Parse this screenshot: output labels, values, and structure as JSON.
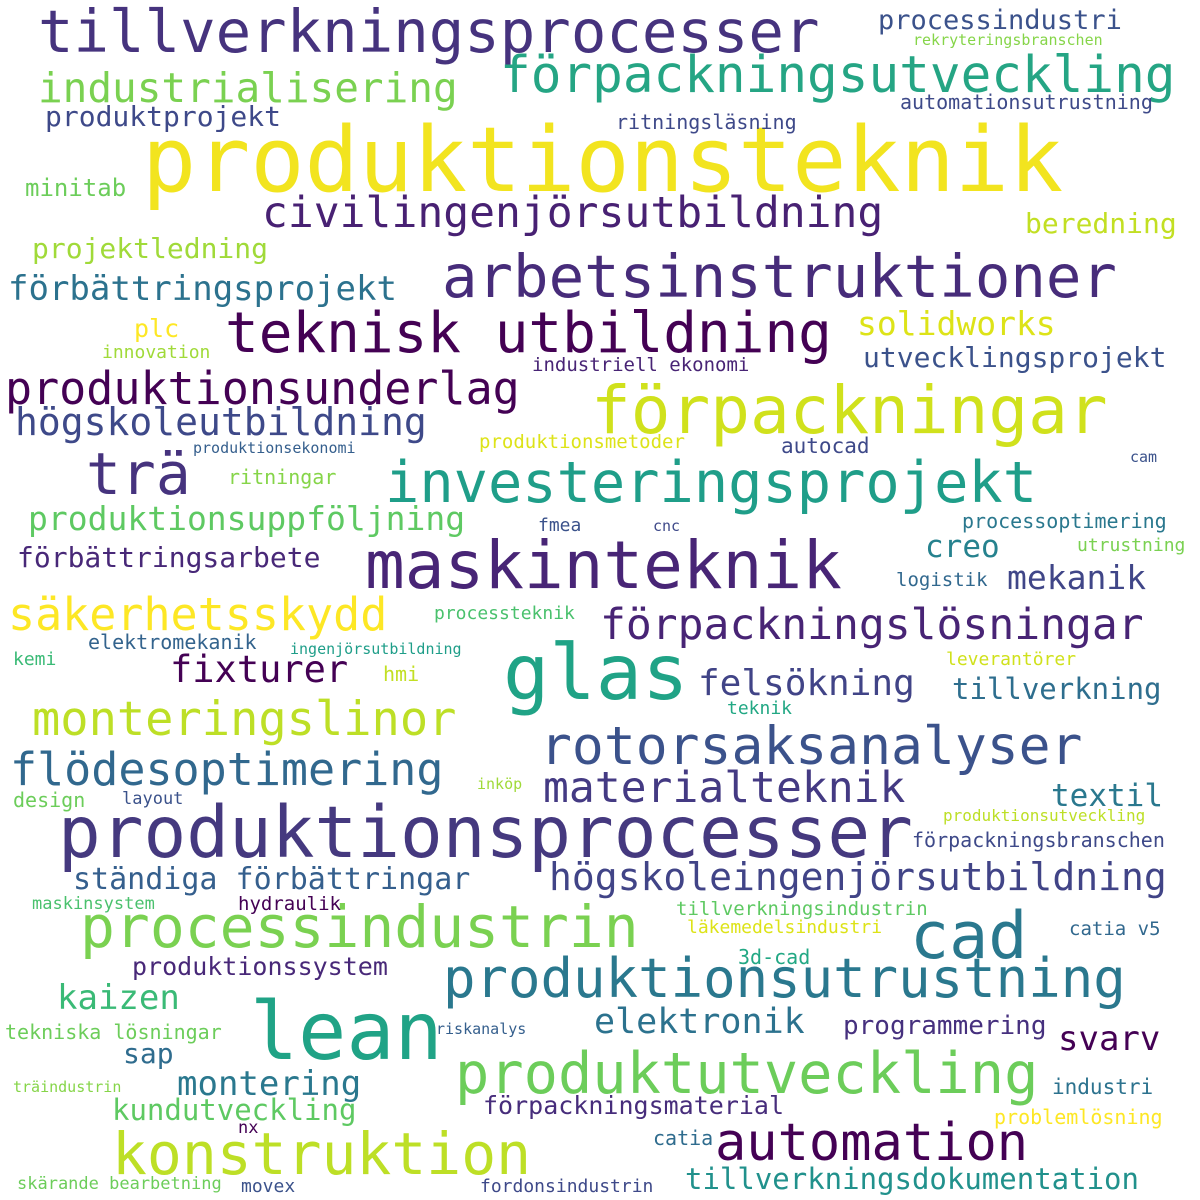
{
  "words": [
    {
      "text": "produktionsteknik",
      "color": "#f2e41f"
    },
    {
      "text": "produktionsprocesser",
      "color": "#45397f"
    },
    {
      "text": "tillverkningsprocesser",
      "color": "#46337e"
    },
    {
      "text": "förpackningsutveckling",
      "color": "#25a584"
    },
    {
      "text": "förpackningar",
      "color": "#d0e11c"
    },
    {
      "text": "arbetsinstruktioner",
      "color": "#472c7a"
    },
    {
      "text": "maskinteknik",
      "color": "#482576"
    },
    {
      "text": "glas",
      "color": "#20a386"
    },
    {
      "text": "processindustrin",
      "color": "#7ad151"
    },
    {
      "text": "produktionsutrustning",
      "color": "#2a788e"
    },
    {
      "text": "lean",
      "color": "#20a386"
    },
    {
      "text": "cad",
      "color": "#2a788e"
    },
    {
      "text": "produktutveckling",
      "color": "#6ccd5a"
    },
    {
      "text": "konstruktion",
      "color": "#bddf26"
    },
    {
      "text": "automation",
      "color": "#440154"
    },
    {
      "text": "teknisk utbildning",
      "color": "#440154"
    },
    {
      "text": "investeringsprojekt",
      "color": "#1f9e89"
    },
    {
      "text": "civilingenjörsutbildning",
      "color": "#482173"
    },
    {
      "text": "produktionsunderlag",
      "color": "#440154"
    },
    {
      "text": "rotorsaksanalyser",
      "color": "#3b528b"
    },
    {
      "text": "trä",
      "color": "#46337e"
    },
    {
      "text": "monteringslinor",
      "color": "#bddf26"
    },
    {
      "text": "flödesoptimering",
      "color": "#31688e"
    },
    {
      "text": "förpackningslösningar",
      "color": "#482475"
    },
    {
      "text": "säkerhetsskydd",
      "color": "#fde725"
    },
    {
      "text": "högskoleutbildning",
      "color": "#3e4989"
    },
    {
      "text": "högskoleingenjörsutbildning",
      "color": "#414487"
    },
    {
      "text": "materialteknik",
      "color": "#443a83"
    },
    {
      "text": "industrialisering",
      "color": "#7ad151"
    },
    {
      "text": "förbättringsprojekt",
      "color": "#2c728e"
    },
    {
      "text": "produktionsuppföljning",
      "color": "#5ec962"
    },
    {
      "text": "ständiga förbättringar",
      "color": "#355f8d"
    },
    {
      "text": "tillverkningsdokumentation",
      "color": "#21918c"
    },
    {
      "text": "elektronik",
      "color": "#2c728e"
    },
    {
      "text": "felsökning",
      "color": "#414487"
    },
    {
      "text": "fixturer",
      "color": "#440154"
    },
    {
      "text": "mekanik",
      "color": "#404688"
    },
    {
      "text": "kaizen",
      "color": "#3aba76"
    },
    {
      "text": "montering",
      "color": "#2a788e"
    },
    {
      "text": "solidworks",
      "color": "#dde318"
    },
    {
      "text": "utvecklingsprojekt",
      "color": "#3b528b"
    },
    {
      "text": "förbättringsarbete",
      "color": "#482878"
    },
    {
      "text": "förpackningsmaterial",
      "color": "#472d7b"
    },
    {
      "text": "kundutveckling",
      "color": "#5ec962"
    },
    {
      "text": "projektledning",
      "color": "#a0da39"
    },
    {
      "text": "creo",
      "color": "#26828e"
    },
    {
      "text": "textil",
      "color": "#2a788e"
    },
    {
      "text": "tillverkning",
      "color": "#2e6e8e"
    },
    {
      "text": "svarv",
      "color": "#440154"
    },
    {
      "text": "produktionssystem",
      "color": "#482878"
    },
    {
      "text": "programmering",
      "color": "#46307e"
    },
    {
      "text": "processindustri",
      "color": "#3b528b"
    },
    {
      "text": "produktprojekt",
      "color": "#3e4989"
    },
    {
      "text": "beredning",
      "color": "#c2df23"
    },
    {
      "text": "sap",
      "color": "#2f6c8e"
    },
    {
      "text": "minitab",
      "color": "#6ccd5a"
    },
    {
      "text": "automationsutrustning",
      "color": "#3e4a89"
    },
    {
      "text": "ritningsläsning",
      "color": "#3e4989"
    },
    {
      "text": "plc",
      "color": "#fde725"
    },
    {
      "text": "industriell ekonomi",
      "color": "#482475"
    },
    {
      "text": "produktionsmetoder",
      "color": "#dde318"
    },
    {
      "text": "autocad",
      "color": "#3e4989"
    },
    {
      "text": "ritningar",
      "color": "#86d549"
    },
    {
      "text": "processoptimering",
      "color": "#2a788e"
    },
    {
      "text": "utrustning",
      "color": "#7ad151"
    },
    {
      "text": "logistik",
      "color": "#31688e"
    },
    {
      "text": "förpackningsbranschen",
      "color": "#3e4989"
    },
    {
      "text": "produktionsutveckling",
      "color": "#bddf26"
    },
    {
      "text": "tillverkningsindustrin",
      "color": "#5ec962"
    },
    {
      "text": "läkemedelsindustri",
      "color": "#dde318"
    },
    {
      "text": "catia v5",
      "color": "#31688e"
    },
    {
      "text": "3d-cad",
      "color": "#22a884"
    },
    {
      "text": "hydraulik",
      "color": "#440154"
    },
    {
      "text": "maskinsystem",
      "color": "#4ac16d"
    },
    {
      "text": "tekniska lösningar",
      "color": "#6ccd5a"
    },
    {
      "text": "riskanalys",
      "color": "#355f8d"
    },
    {
      "text": "industri",
      "color": "#2c728e"
    },
    {
      "text": "problemlösning",
      "color": "#fde725"
    },
    {
      "text": "catia",
      "color": "#2f6c8e"
    },
    {
      "text": "nx",
      "color": "#440154"
    },
    {
      "text": "movex",
      "color": "#3b528b"
    },
    {
      "text": "fordonsindustrin",
      "color": "#3e4989"
    },
    {
      "text": "skärande bearbetning",
      "color": "#6ccd5a"
    },
    {
      "text": "träindustrin",
      "color": "#86d549"
    },
    {
      "text": "design",
      "color": "#6ccd5a"
    },
    {
      "text": "layout",
      "color": "#3b528b"
    },
    {
      "text": "inköp",
      "color": "#a0da39"
    },
    {
      "text": "hmi",
      "color": "#c2df23"
    },
    {
      "text": "leverantörer",
      "color": "#d0e11c"
    },
    {
      "text": "teknik",
      "color": "#22a884"
    },
    {
      "text": "kemi",
      "color": "#3aba76"
    },
    {
      "text": "elektromekanik",
      "color": "#33638d"
    },
    {
      "text": "ingenjörsutbildning",
      "color": "#1f9e89"
    },
    {
      "text": "processteknik",
      "color": "#4ac16d"
    },
    {
      "text": "fmea",
      "color": "#3b528b"
    },
    {
      "text": "cnc",
      "color": "#3e4989"
    },
    {
      "text": "cam",
      "color": "#3b528b"
    },
    {
      "text": "produktionsekonomi",
      "color": "#355f8d"
    },
    {
      "text": "innovation",
      "color": "#a0da39"
    },
    {
      "text": "rekryteringsbranschen",
      "color": "#86d549"
    }
  ]
}
